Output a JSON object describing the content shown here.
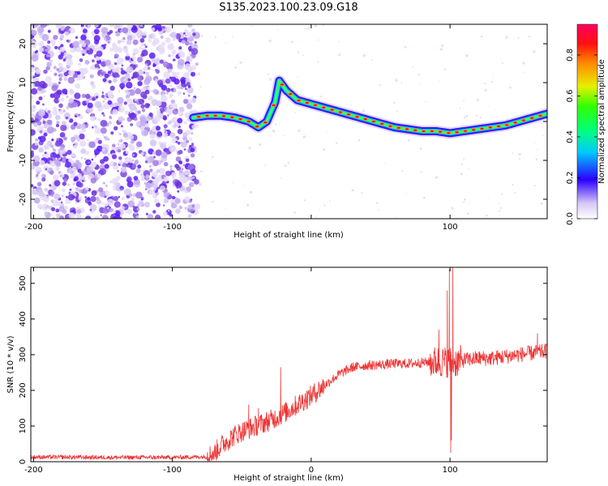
{
  "title": "S135.2023.100.23.09.G18",
  "chart_data": [
    {
      "type": "heatmap",
      "name": "spectrogram",
      "xlabel": "Height of straight line (km)",
      "ylabel": "Frequency (Hz)",
      "xlim": [
        -202,
        170
      ],
      "ylim": [
        -25,
        25
      ],
      "x_ticks": [
        -200,
        -100,
        0,
        100
      ],
      "x_tick_labels": [
        "-200",
        "-100",
        "",
        "100"
      ],
      "y_ticks": [
        -20,
        -10,
        0,
        10,
        20
      ],
      "y_tick_labels": [
        "-20",
        "-10",
        "0",
        "10",
        "20"
      ],
      "colorbar": {
        "label": "Normalized spectral amplitude",
        "ticks": [
          0.0,
          0.2,
          0.4,
          0.6,
          0.8
        ],
        "tick_labels": [
          "0.0",
          "0.2",
          "0.4",
          "0.6",
          "0.8"
        ],
        "range": [
          0,
          0.95
        ]
      },
      "noise_region_x": [
        -202,
        -82
      ],
      "ridge": {
        "x": [
          -85,
          -75,
          -65,
          -55,
          -45,
          -38,
          -32,
          -26,
          -23,
          -18,
          -10,
          0,
          10,
          20,
          30,
          40,
          50,
          60,
          70,
          80,
          90,
          100,
          110,
          120,
          130,
          140,
          150,
          160,
          170
        ],
        "freq": [
          1.0,
          1.5,
          1.5,
          1.0,
          0.0,
          -1.5,
          0.0,
          5.0,
          10.5,
          8.0,
          5.5,
          4.5,
          3.5,
          2.5,
          1.5,
          0.5,
          -0.5,
          -1.5,
          -2.0,
          -2.5,
          -2.5,
          -3.0,
          -2.5,
          -2.0,
          -1.5,
          -1.0,
          0.0,
          1.0,
          2.0
        ]
      }
    },
    {
      "type": "line",
      "name": "snr",
      "xlabel": "Height of straight line (km)",
      "ylabel": "SNR (10 * v/v)",
      "xlim": [
        -202,
        170
      ],
      "ylim": [
        0,
        545
      ],
      "x_ticks": [
        -200,
        -100,
        0,
        100
      ],
      "x_tick_labels": [
        "-200",
        "-100",
        "0",
        "100"
      ],
      "y_ticks": [
        0,
        100,
        200,
        300,
        400,
        500
      ],
      "y_tick_labels": [
        "0",
        "100",
        "200",
        "300",
        "400",
        "500"
      ],
      "color": "#ee3333",
      "baseline": {
        "x": [
          -202,
          -150,
          -100,
          -75,
          -70,
          -65,
          -60,
          -55,
          -50,
          -40,
          -30,
          -20,
          -10,
          0,
          10,
          20,
          30,
          40,
          50,
          60,
          70,
          80,
          90,
          95,
          100,
          105,
          110,
          120,
          130,
          140,
          150,
          160,
          170
        ],
        "y": [
          13,
          12,
          12,
          14,
          25,
          45,
          60,
          75,
          85,
          100,
          115,
          135,
          160,
          185,
          215,
          245,
          265,
          270,
          272,
          275,
          275,
          278,
          280,
          280,
          280,
          280,
          285,
          290,
          290,
          295,
          300,
          305,
          310
        ]
      },
      "spikes": [
        {
          "x": -58,
          "y": 78
        },
        {
          "x": -45,
          "y": 160
        },
        {
          "x": -38,
          "y": 150
        },
        {
          "x": -22,
          "y": 265
        },
        {
          "x": 92,
          "y": 370
        },
        {
          "x": 98,
          "y": 480
        },
        {
          "x": 99.5,
          "y": 540
        },
        {
          "x": 100.5,
          "y": 25
        },
        {
          "x": 101,
          "y": 60
        },
        {
          "x": 102,
          "y": 545
        },
        {
          "x": 163,
          "y": 360
        }
      ]
    }
  ]
}
